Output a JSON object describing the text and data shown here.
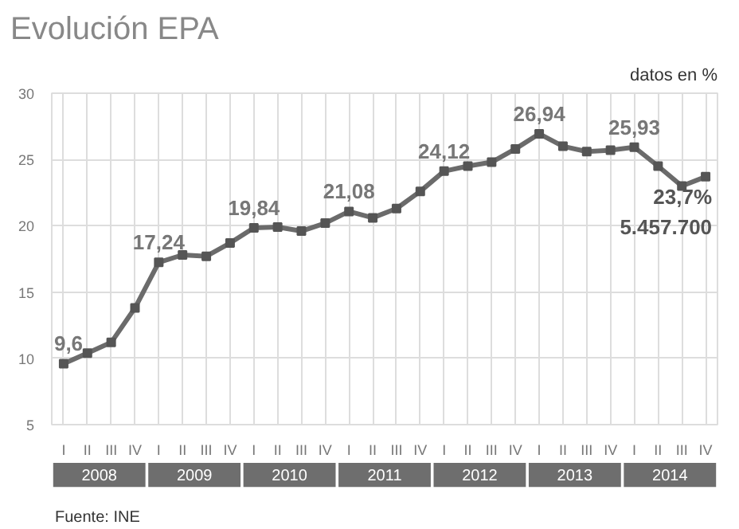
{
  "chart_data": {
    "type": "line",
    "title": "Evolución EPA",
    "subtitle": "datos en %",
    "categories": [
      "I",
      "II",
      "III",
      "IV",
      "I",
      "II",
      "III",
      "IV",
      "I",
      "II",
      "III",
      "IV",
      "I",
      "II",
      "III",
      "IV",
      "I",
      "II",
      "III",
      "IV",
      "I",
      "II",
      "III",
      "IV",
      "I",
      "II",
      "III",
      "IV"
    ],
    "series": [
      {
        "color": "#6b6b6b",
        "values": [
          9.6,
          10.4,
          11.2,
          13.8,
          17.24,
          17.8,
          17.7,
          18.7,
          19.84,
          19.9,
          19.6,
          20.2,
          21.08,
          20.6,
          21.3,
          22.6,
          24.12,
          24.5,
          24.8,
          25.8,
          26.94,
          26.0,
          25.6,
          25.7,
          25.93,
          24.5,
          23.0,
          23.7
        ],
        "value_labels": [
          "9,6",
          null,
          null,
          null,
          "17,24",
          null,
          null,
          null,
          "19,84",
          null,
          null,
          null,
          "21,08",
          null,
          null,
          null,
          "24,12",
          null,
          null,
          null,
          "26,94",
          null,
          null,
          null,
          "25,93",
          null,
          null,
          "23,7%\n5.457.700"
        ]
      }
    ],
    "ylim": [
      5,
      30
    ],
    "yticks": [
      5,
      10,
      15,
      20,
      25,
      30
    ],
    "grid": true,
    "marker": "square",
    "line_style": "solid",
    "annotations": [
      "Fuente: INE",
      "2008",
      "2009",
      "2010",
      "2011",
      "2012",
      "2013",
      "2014"
    ]
  }
}
